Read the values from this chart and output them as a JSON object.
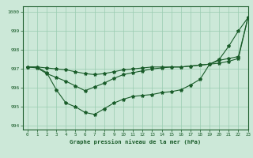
{
  "bg_color": "#cce8d8",
  "grid_color": "#99ccb0",
  "line_color": "#1a5c2a",
  "xlabel": "Graphe pression niveau de la mer (hPa)",
  "xlim": [
    -0.5,
    23
  ],
  "ylim": [
    993.8,
    1000.3
  ],
  "yticks": [
    994,
    995,
    996,
    997,
    998,
    999,
    1000
  ],
  "xticks": [
    0,
    1,
    2,
    3,
    4,
    5,
    6,
    7,
    8,
    9,
    10,
    11,
    12,
    13,
    14,
    15,
    16,
    17,
    18,
    19,
    20,
    21,
    22,
    23
  ],
  "series1_x": [
    0,
    1,
    2,
    3,
    4,
    5,
    6,
    7,
    8,
    9,
    10,
    11,
    12,
    13,
    14,
    15,
    16,
    17,
    18,
    19,
    20,
    21,
    22,
    23
  ],
  "series1_y": [
    997.1,
    997.1,
    996.8,
    995.9,
    995.2,
    995.0,
    994.7,
    994.6,
    994.9,
    995.2,
    995.4,
    995.55,
    995.6,
    995.65,
    995.75,
    995.8,
    995.9,
    996.15,
    996.45,
    997.25,
    997.5,
    998.2,
    999.0,
    999.7
  ],
  "series2_x": [
    0,
    1,
    2,
    3,
    4,
    5,
    6,
    7,
    8,
    9,
    10,
    11,
    12,
    13,
    14,
    15,
    16,
    17,
    18,
    19,
    20,
    21,
    22,
    23
  ],
  "series2_y": [
    997.1,
    997.05,
    996.75,
    996.55,
    996.35,
    996.1,
    995.85,
    996.05,
    996.25,
    996.5,
    996.7,
    996.8,
    996.9,
    997.0,
    997.05,
    997.1,
    997.1,
    997.15,
    997.2,
    997.25,
    997.45,
    997.55,
    997.65,
    999.7
  ],
  "series3_x": [
    0,
    1,
    2,
    3,
    4,
    5,
    6,
    7,
    8,
    9,
    10,
    11,
    12,
    13,
    14,
    15,
    16,
    17,
    18,
    19,
    20,
    21,
    22,
    23
  ],
  "series3_y": [
    997.1,
    997.1,
    997.05,
    997.0,
    996.95,
    996.85,
    996.75,
    996.7,
    996.75,
    996.85,
    996.95,
    997.0,
    997.05,
    997.1,
    997.1,
    997.1,
    997.1,
    997.15,
    997.2,
    997.25,
    997.3,
    997.4,
    997.55,
    999.7
  ]
}
